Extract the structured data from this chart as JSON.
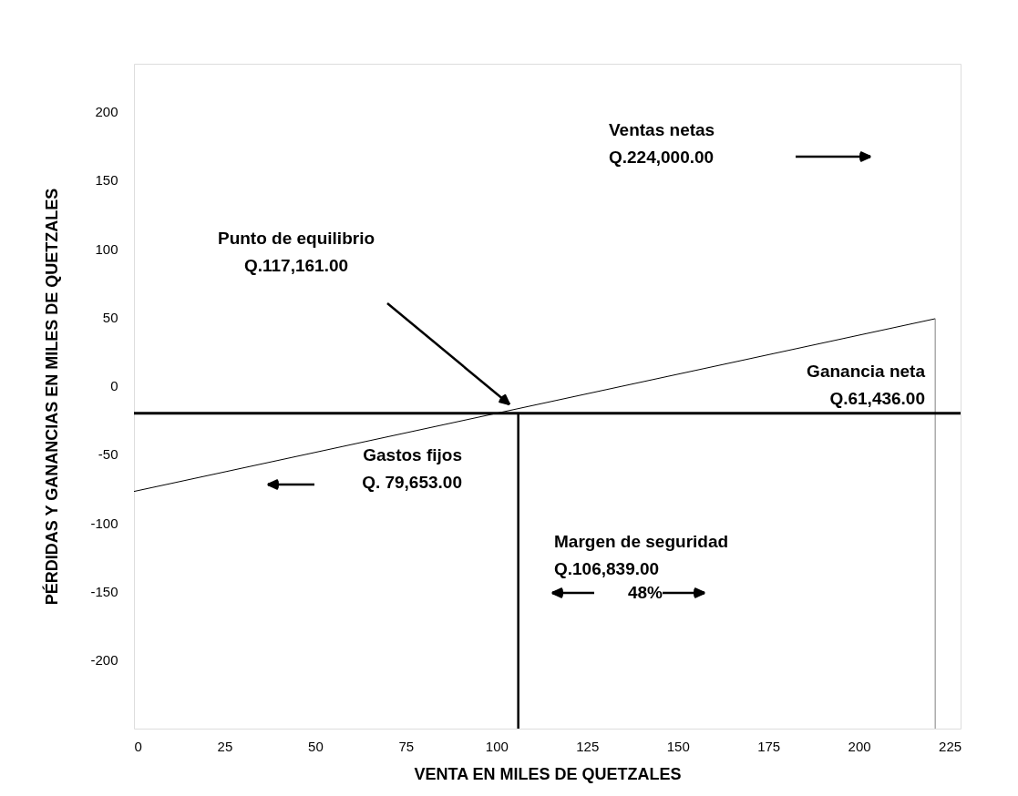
{
  "chart_data": {
    "type": "line",
    "xlabel": "VENTA EN MILES DE QUETZALES",
    "ylabel": "PÉRDIDAS Y GANANCIAS  EN MILES DE QUETZALES",
    "xlim": [
      0,
      228
    ],
    "xticks": [
      0,
      25,
      50,
      75,
      100,
      125,
      150,
      175,
      200,
      225
    ],
    "ylim": [
      -250,
      235
    ],
    "yticks": [
      -200,
      -150,
      -100,
      -50,
      0,
      50,
      100,
      150,
      200
    ],
    "grid": false,
    "marker": "none",
    "line_style": "solid",
    "series": [
      {
        "x": [
          0,
          221
        ],
        "values": [
          -77,
          49
        ],
        "color": "#000000"
      },
      {
        "x": [
          106,
          106
        ],
        "values": [
          -250,
          -20
        ],
        "color": "#000000"
      },
      {
        "x": [
          221,
          221
        ],
        "values": [
          -250,
          49
        ],
        "color": "#808080"
      }
    ],
    "ref_lines": [
      {
        "axis": "y",
        "value": -20,
        "color": "#000000"
      }
    ],
    "annotations": [
      "Ventas netas\nQ.224,000.00",
      "Punto de equilibrio\nQ.117,161.00",
      "Ganancia neta\nQ.61,436.00",
      "Gastos fijos\nQ. 79,653.00",
      "Margen de seguridad\nQ.106,839.00",
      "48%"
    ]
  }
}
